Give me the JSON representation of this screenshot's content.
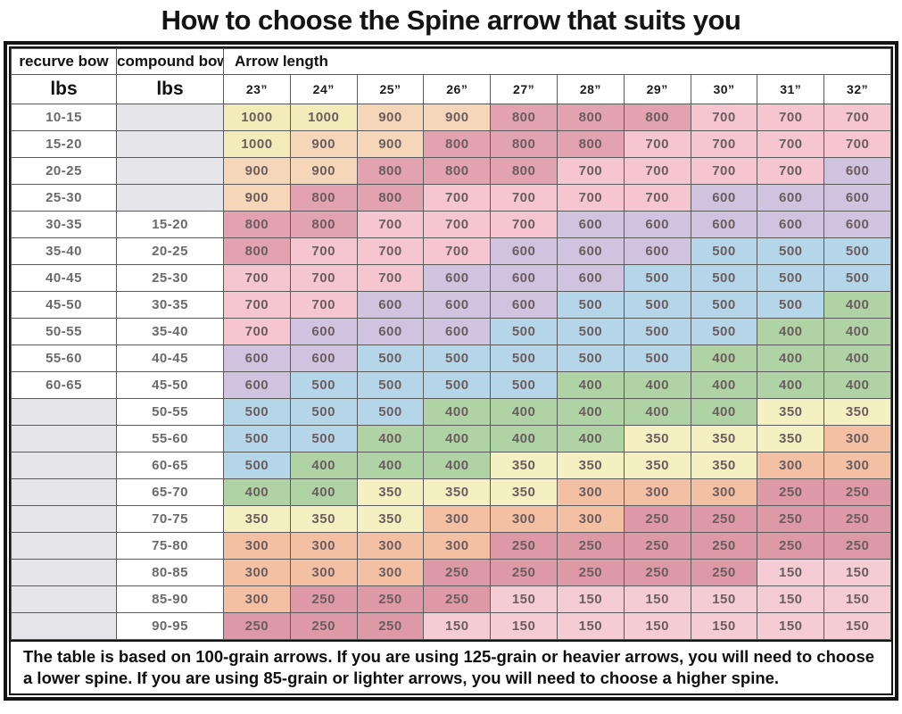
{
  "title": "How to choose the Spine arrow that suits you",
  "footnote": "The table is based on 100-grain arrows. If you are using 125-grain or heavier arrows, you will need to choose a lower spine. If you are using 85-grain or lighter arrows, you will need to choose a higher spine.",
  "chart_data": {
    "type": "table",
    "title": "How to choose the Spine arrow that suits you",
    "header": {
      "recurve_label": "recurve bow",
      "compound_label": "compound bow",
      "group_label": "Arrow length",
      "unit_recurve": "lbs",
      "unit_compound": "lbs",
      "arrow_lengths": [
        "23”",
        "24”",
        "25”",
        "26”",
        "27”",
        "28”",
        "29”",
        "30”",
        "31”",
        "32”"
      ]
    },
    "rows": [
      {
        "recurve": "10-15",
        "compound": "",
        "spines": [
          1000,
          1000,
          900,
          900,
          800,
          800,
          800,
          700,
          700,
          700
        ]
      },
      {
        "recurve": "15-20",
        "compound": "",
        "spines": [
          1000,
          900,
          900,
          800,
          800,
          800,
          700,
          700,
          700,
          700
        ]
      },
      {
        "recurve": "20-25",
        "compound": "",
        "spines": [
          900,
          900,
          800,
          800,
          800,
          700,
          700,
          700,
          700,
          600
        ]
      },
      {
        "recurve": "25-30",
        "compound": "",
        "spines": [
          900,
          800,
          800,
          700,
          700,
          700,
          700,
          600,
          600,
          600
        ]
      },
      {
        "recurve": "30-35",
        "compound": "15-20",
        "spines": [
          800,
          800,
          700,
          700,
          700,
          600,
          600,
          600,
          600,
          600
        ]
      },
      {
        "recurve": "35-40",
        "compound": "20-25",
        "spines": [
          800,
          700,
          700,
          700,
          600,
          600,
          600,
          500,
          500,
          500
        ]
      },
      {
        "recurve": "40-45",
        "compound": "25-30",
        "spines": [
          700,
          700,
          700,
          600,
          600,
          600,
          500,
          500,
          500,
          500
        ]
      },
      {
        "recurve": "45-50",
        "compound": "30-35",
        "spines": [
          700,
          700,
          600,
          600,
          600,
          500,
          500,
          500,
          500,
          400
        ]
      },
      {
        "recurve": "50-55",
        "compound": "35-40",
        "spines": [
          700,
          600,
          600,
          600,
          500,
          500,
          500,
          500,
          400,
          400
        ]
      },
      {
        "recurve": "55-60",
        "compound": "40-45",
        "spines": [
          600,
          600,
          500,
          500,
          500,
          500,
          500,
          400,
          400,
          400
        ]
      },
      {
        "recurve": "60-65",
        "compound": "45-50",
        "spines": [
          600,
          500,
          500,
          500,
          500,
          400,
          400,
          400,
          400,
          400
        ]
      },
      {
        "recurve": "",
        "compound": "50-55",
        "spines": [
          500,
          500,
          500,
          400,
          400,
          400,
          400,
          400,
          350,
          350
        ]
      },
      {
        "recurve": "",
        "compound": "55-60",
        "spines": [
          500,
          500,
          400,
          400,
          400,
          400,
          350,
          350,
          350,
          300
        ]
      },
      {
        "recurve": "",
        "compound": "60-65",
        "spines": [
          500,
          400,
          400,
          400,
          350,
          350,
          350,
          350,
          300,
          300
        ]
      },
      {
        "recurve": "",
        "compound": "65-70",
        "spines": [
          400,
          400,
          350,
          350,
          350,
          300,
          300,
          300,
          250,
          250
        ]
      },
      {
        "recurve": "",
        "compound": "70-75",
        "spines": [
          350,
          350,
          350,
          300,
          300,
          300,
          250,
          250,
          250,
          250
        ]
      },
      {
        "recurve": "",
        "compound": "75-80",
        "spines": [
          300,
          300,
          300,
          300,
          250,
          250,
          250,
          250,
          250,
          250
        ]
      },
      {
        "recurve": "",
        "compound": "80-85",
        "spines": [
          300,
          300,
          300,
          250,
          250,
          250,
          250,
          250,
          150,
          150
        ]
      },
      {
        "recurve": "",
        "compound": "85-90",
        "spines": [
          300,
          250,
          250,
          250,
          150,
          150,
          150,
          150,
          150,
          150
        ]
      },
      {
        "recurve": "",
        "compound": "90-95",
        "spines": [
          250,
          250,
          250,
          150,
          150,
          150,
          150,
          150,
          150,
          150
        ]
      }
    ]
  },
  "colors": {
    "spine": {
      "1000": "#f1ecba",
      "900": "#f6d6b8",
      "800": "#e3a2b0",
      "700": "#f5c6cf",
      "600": "#d0c3df",
      "500": "#b5d6e9",
      "400": "#afd3a4",
      "350": "#f5f0c2",
      "300": "#f3c0a3",
      "250": "#dd9aa6",
      "150": "#f6ccd4"
    },
    "empty_cell": "#e6e6ea"
  }
}
